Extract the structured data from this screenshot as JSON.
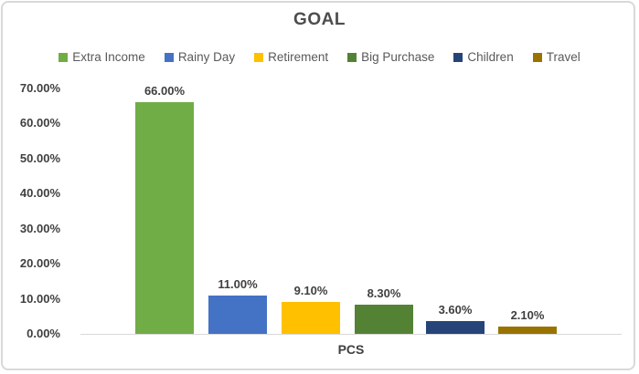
{
  "chart_data": {
    "type": "bar",
    "title": "GOAL",
    "categories": [
      "PCS"
    ],
    "xlabel": "PCS",
    "ylabel": "",
    "ylim": [
      0,
      70
    ],
    "ytick_labels": [
      "0.00%",
      "10.00%",
      "20.00%",
      "30.00%",
      "40.00%",
      "50.00%",
      "60.00%",
      "70.00%"
    ],
    "grid": false,
    "legend_position": "top",
    "series": [
      {
        "name": "Extra Income",
        "value": 66.0,
        "data_label": "66.00%",
        "color": "#70AD47"
      },
      {
        "name": "Rainy Day",
        "value": 11.0,
        "data_label": "11.00%",
        "color": "#4472C4"
      },
      {
        "name": "Retirement",
        "value": 9.1,
        "data_label": "9.10%",
        "color": "#FFC000"
      },
      {
        "name": "Big Purchase",
        "value": 8.3,
        "data_label": "8.30%",
        "color": "#548235"
      },
      {
        "name": "Children",
        "value": 3.6,
        "data_label": "3.60%",
        "color": "#264478"
      },
      {
        "name": "Travel",
        "value": 2.1,
        "data_label": "2.10%",
        "color": "#997300"
      }
    ]
  }
}
